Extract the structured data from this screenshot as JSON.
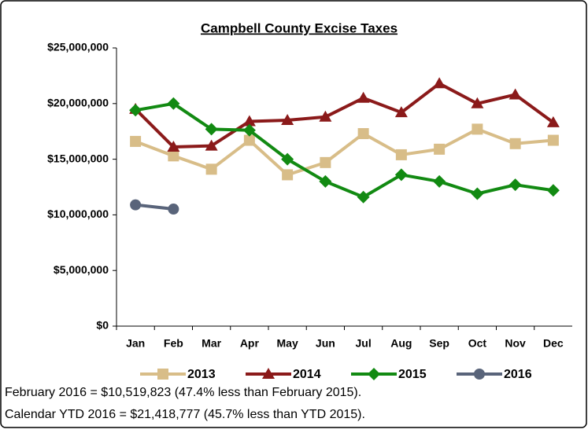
{
  "chart_data": {
    "type": "line",
    "title": "Campbell County Excise Taxes",
    "categories": [
      "Jan",
      "Feb",
      "Mar",
      "Apr",
      "May",
      "Jun",
      "Jul",
      "Aug",
      "Sep",
      "Oct",
      "Nov",
      "Dec"
    ],
    "series": [
      {
        "name": "2013",
        "color": "#d8bd88",
        "marker": "square",
        "values": [
          16600000,
          15300000,
          14100000,
          16700000,
          13600000,
          14700000,
          17300000,
          15400000,
          15900000,
          17700000,
          16400000,
          16700000
        ]
      },
      {
        "name": "2014",
        "color": "#8b1a1a",
        "marker": "triangle",
        "values": [
          19500000,
          16100000,
          16200000,
          18400000,
          18500000,
          18800000,
          20500000,
          19200000,
          21800000,
          20000000,
          20800000,
          18300000
        ]
      },
      {
        "name": "2015",
        "color": "#128a12",
        "marker": "diamond",
        "values": [
          19400000,
          20000000,
          17700000,
          17600000,
          15000000,
          13000000,
          11600000,
          13600000,
          13000000,
          11900000,
          12700000,
          12200000
        ]
      },
      {
        "name": "2016",
        "color": "#59647a",
        "marker": "circle",
        "values": [
          10900000,
          10519823,
          null,
          null,
          null,
          null,
          null,
          null,
          null,
          null,
          null,
          null
        ]
      }
    ],
    "ylim": [
      0,
      25000000
    ],
    "yticks": [
      {
        "value": 0,
        "label": "$0"
      },
      {
        "value": 5000000,
        "label": "$5,000,000"
      },
      {
        "value": 10000000,
        "label": "$10,000,000"
      },
      {
        "value": 15000000,
        "label": "$15,000,000"
      },
      {
        "value": 20000000,
        "label": "$20,000,000"
      },
      {
        "value": 25000000,
        "label": "$25,000,000"
      }
    ],
    "legend": "bottom",
    "notes": [
      "February 2016 = $10,519,823 (47.4% less than February 2015).",
      "Calendar YTD 2016 = $21,418,777 (45.7% less than YTD 2015)."
    ]
  }
}
